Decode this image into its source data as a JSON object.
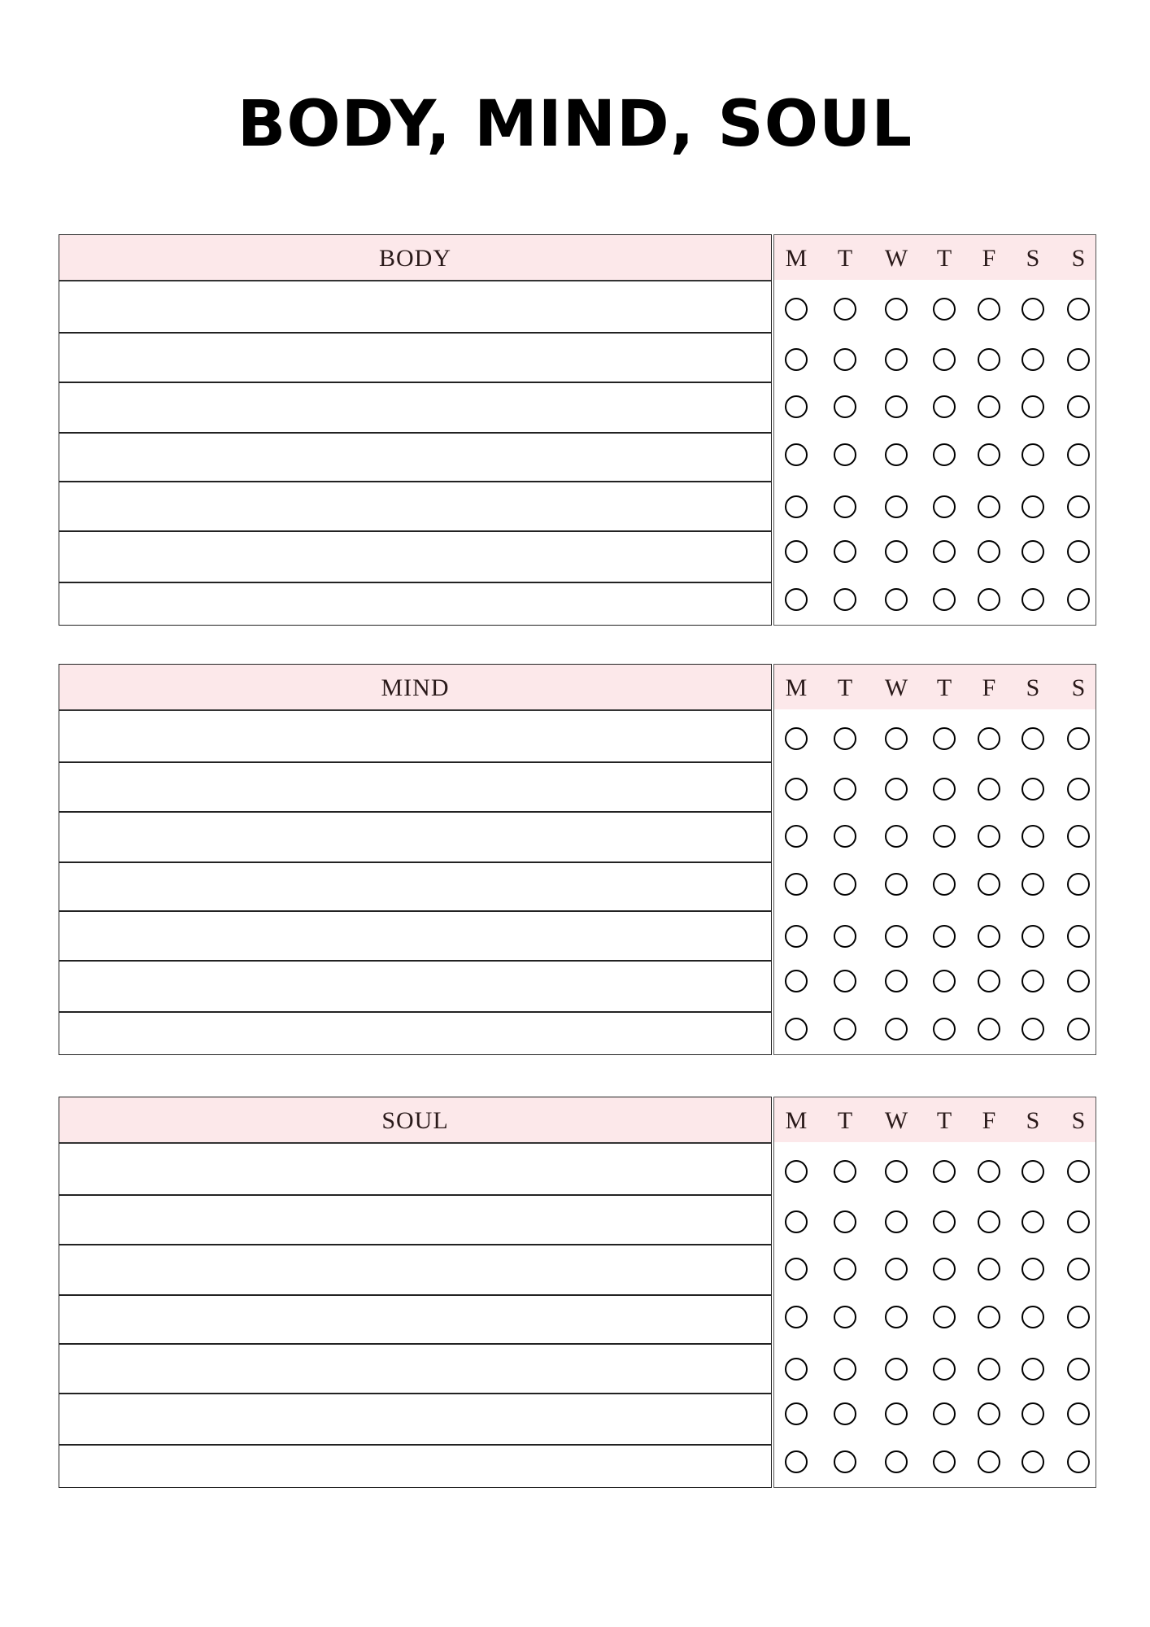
{
  "title": "BODY, MIND, SOUL",
  "colors": {
    "header_fill": "#fce8ea",
    "line": "#222222"
  },
  "days": [
    "M",
    "T",
    "W",
    "T",
    "F",
    "S",
    "S"
  ],
  "sections": [
    {
      "label": "BODY",
      "rows": 7
    },
    {
      "label": "MIND",
      "rows": 7
    },
    {
      "label": "SOUL",
      "rows": 7
    }
  ],
  "icons": {
    "checkbox": "circle-outline"
  }
}
